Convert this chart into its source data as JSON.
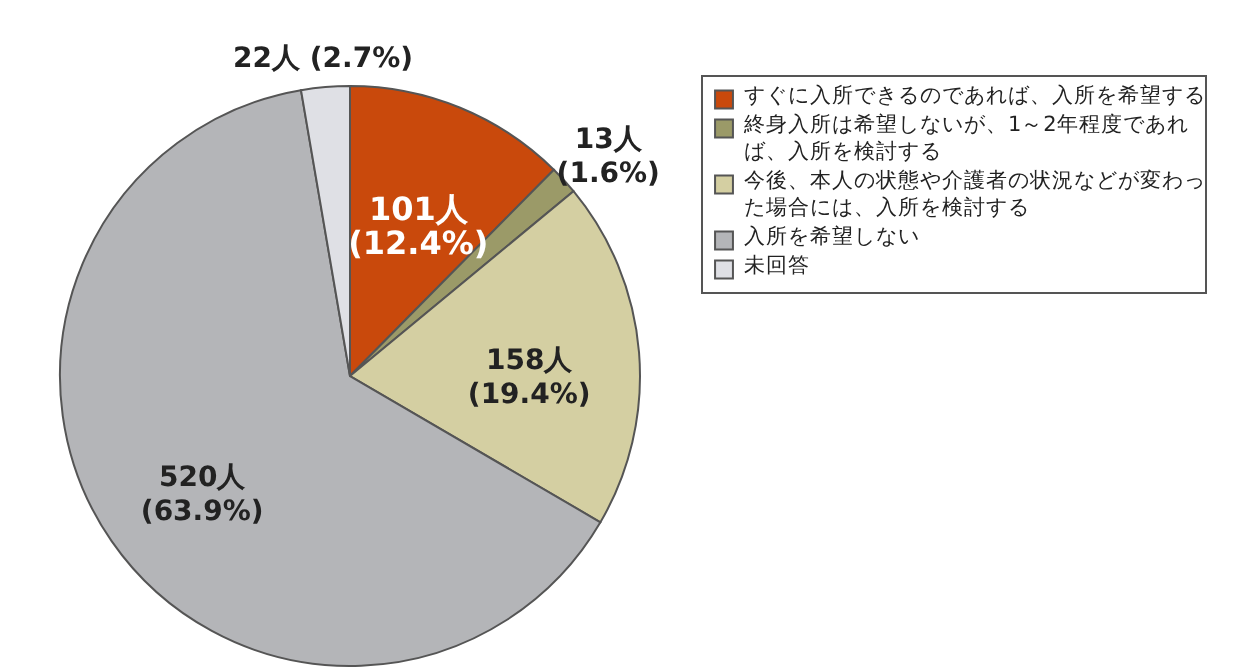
{
  "chart_data": {
    "type": "pie",
    "categories": [
      "すぐに入所できるのであれば、入所を希望する",
      "終身入所は希望しないが、1～2年程度であれば、入所を検討する",
      "今後、本人の状態や介護者の状況などが変わった場合には、入所を検討する",
      "入所を希望しない",
      "未回答"
    ],
    "values": [
      101,
      13,
      158,
      520,
      22
    ],
    "colors": [
      "#c9490c",
      "#9b9a68",
      "#d4cfa2",
      "#b4b5b8",
      "#dfe0e5"
    ],
    "value_labels": [
      "101人 (12.4%)",
      "13人 (1.6%)",
      "158人 (19.4%)",
      "520人 (63.9%)",
      "22人 (2.7%)"
    ],
    "legend": "right"
  }
}
